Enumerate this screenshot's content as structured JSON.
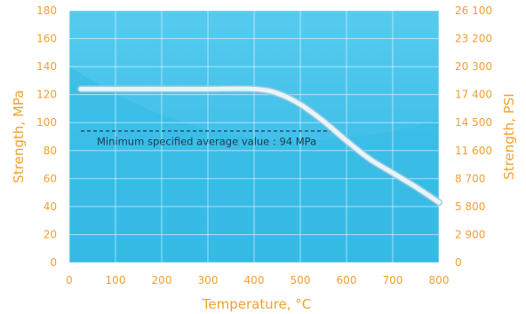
{
  "chart_data": {
    "type": "line",
    "title": "",
    "xlabel": "Temperature, °C",
    "ylabel": "Strength, MPa",
    "ylabel_right": "Strength, PSI",
    "xlim": [
      0,
      800
    ],
    "ylim": [
      0,
      180
    ],
    "x_ticks": [
      "0",
      "100",
      "200",
      "300",
      "400",
      "500",
      "600",
      "700",
      "800"
    ],
    "y_ticks": [
      "0",
      "20",
      "40",
      "60",
      "80",
      "100",
      "120",
      "140",
      "160",
      "180"
    ],
    "y_ticks_right": [
      "0",
      "2 900",
      "5 800",
      "8 700",
      "11 600",
      "14 500",
      "17 400",
      "20 300",
      "23 200",
      "26 100"
    ],
    "grid": true,
    "series": [
      {
        "x": [
          25,
          100,
          200,
          300,
          400,
          450,
          500,
          550,
          600,
          650,
          700,
          750,
          800
        ],
        "values": [
          124,
          124,
          124,
          124,
          124,
          121,
          113,
          101,
          87,
          74,
          64,
          54,
          43
        ]
      }
    ],
    "annotations": [
      {
        "text": "Minimum specified average value : 94 MPa",
        "y": 94,
        "x_start": 25,
        "x_end": 575
      }
    ],
    "colors": {
      "axis_text": "#F0A030",
      "plot_bg": "#4EC6EC",
      "grid": "#ffffff",
      "line": "#e8f4fa"
    }
  }
}
